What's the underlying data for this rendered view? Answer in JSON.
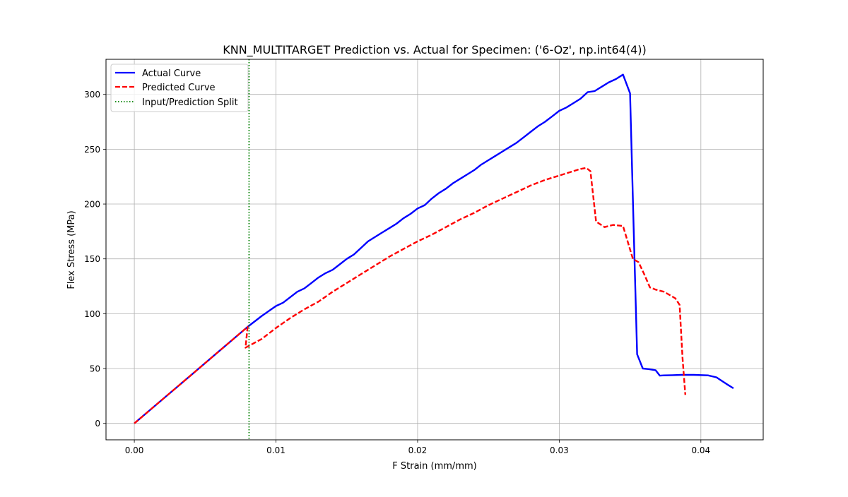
{
  "chart_data": {
    "type": "line",
    "title": "KNN_MULTITARGET Prediction vs. Actual for Specimen: ('6-Oz', np.int64(4))",
    "xlabel": "F Strain (mm/mm)",
    "ylabel": "Flex Stress (MPa)",
    "xlim": [
      -0.002,
      0.0444
    ],
    "ylim": [
      -15,
      332
    ],
    "xticks": [
      0.0,
      0.01,
      0.02,
      0.03,
      0.04
    ],
    "xtick_labels": [
      "0.00",
      "0.01",
      "0.02",
      "0.03",
      "0.04"
    ],
    "yticks": [
      0,
      50,
      100,
      150,
      200,
      250,
      300
    ],
    "ytick_labels": [
      "0",
      "50",
      "100",
      "150",
      "200",
      "250",
      "300"
    ],
    "grid": true,
    "legend_position": "upper-left",
    "series": [
      {
        "name": "Actual Curve",
        "color": "#0000ff",
        "style": "solid",
        "x": [
          0.0,
          0.002,
          0.004,
          0.006,
          0.008,
          0.009,
          0.01,
          0.0105,
          0.011,
          0.0115,
          0.012,
          0.0125,
          0.013,
          0.0135,
          0.014,
          0.0145,
          0.015,
          0.0155,
          0.016,
          0.0165,
          0.017,
          0.0175,
          0.018,
          0.0185,
          0.019,
          0.0195,
          0.02,
          0.0205,
          0.021,
          0.0215,
          0.022,
          0.0225,
          0.023,
          0.0235,
          0.024,
          0.0245,
          0.025,
          0.0255,
          0.026,
          0.0265,
          0.027,
          0.0275,
          0.028,
          0.0285,
          0.029,
          0.0295,
          0.03,
          0.0305,
          0.031,
          0.0315,
          0.032,
          0.0325,
          0.033,
          0.0335,
          0.034,
          0.0345,
          0.035,
          0.03525,
          0.0355,
          0.0359,
          0.0363,
          0.0368,
          0.0371,
          0.0374,
          0.038,
          0.0386,
          0.0395,
          0.0405,
          0.0411,
          0.0418,
          0.0423
        ],
        "y": [
          0,
          22,
          44,
          66,
          88,
          98,
          107,
          110,
          115,
          120,
          123,
          128,
          133,
          137,
          140,
          145,
          150,
          154,
          160,
          166,
          170,
          174,
          178,
          182,
          187,
          191,
          196,
          199,
          205,
          210,
          214,
          219,
          223,
          227,
          231,
          236,
          240,
          244,
          248,
          252,
          256,
          261,
          266,
          271,
          275,
          280,
          285,
          288,
          292,
          296,
          302,
          303,
          307,
          311,
          314,
          318,
          301,
          180,
          63,
          50,
          49.5,
          48.5,
          43.5,
          43.8,
          44,
          44.2,
          44.2,
          43.8,
          42,
          36,
          32
        ]
      },
      {
        "name": "Predicted Curve",
        "color": "#ff0000",
        "style": "dashed",
        "x": [
          0.0,
          0.002,
          0.004,
          0.006,
          0.008,
          0.00785,
          0.009,
          0.01,
          0.011,
          0.012,
          0.013,
          0.014,
          0.015,
          0.016,
          0.017,
          0.018,
          0.019,
          0.02,
          0.021,
          0.022,
          0.023,
          0.024,
          0.025,
          0.026,
          0.027,
          0.028,
          0.029,
          0.03,
          0.031,
          0.0315,
          0.0319,
          0.0322,
          0.0326,
          0.0332,
          0.0338,
          0.0345,
          0.0352,
          0.0356,
          0.036,
          0.0364,
          0.0368,
          0.0374,
          0.0382,
          0.0385,
          0.0387,
          0.0389
        ],
        "y": [
          0,
          22,
          44,
          66,
          88,
          69,
          77,
          87,
          96,
          104,
          111,
          120,
          128,
          136,
          144,
          152,
          159,
          166,
          172,
          179,
          186,
          192,
          199,
          205,
          211,
          217,
          222,
          226,
          230,
          232,
          233,
          230,
          184,
          179,
          181,
          180,
          150,
          147,
          136,
          124,
          122,
          120,
          114,
          108,
          60,
          26
        ]
      },
      {
        "name": "Input/Prediction Split",
        "color": "#008000",
        "style": "dotted",
        "vertical_line_x": 0.0081
      }
    ]
  }
}
